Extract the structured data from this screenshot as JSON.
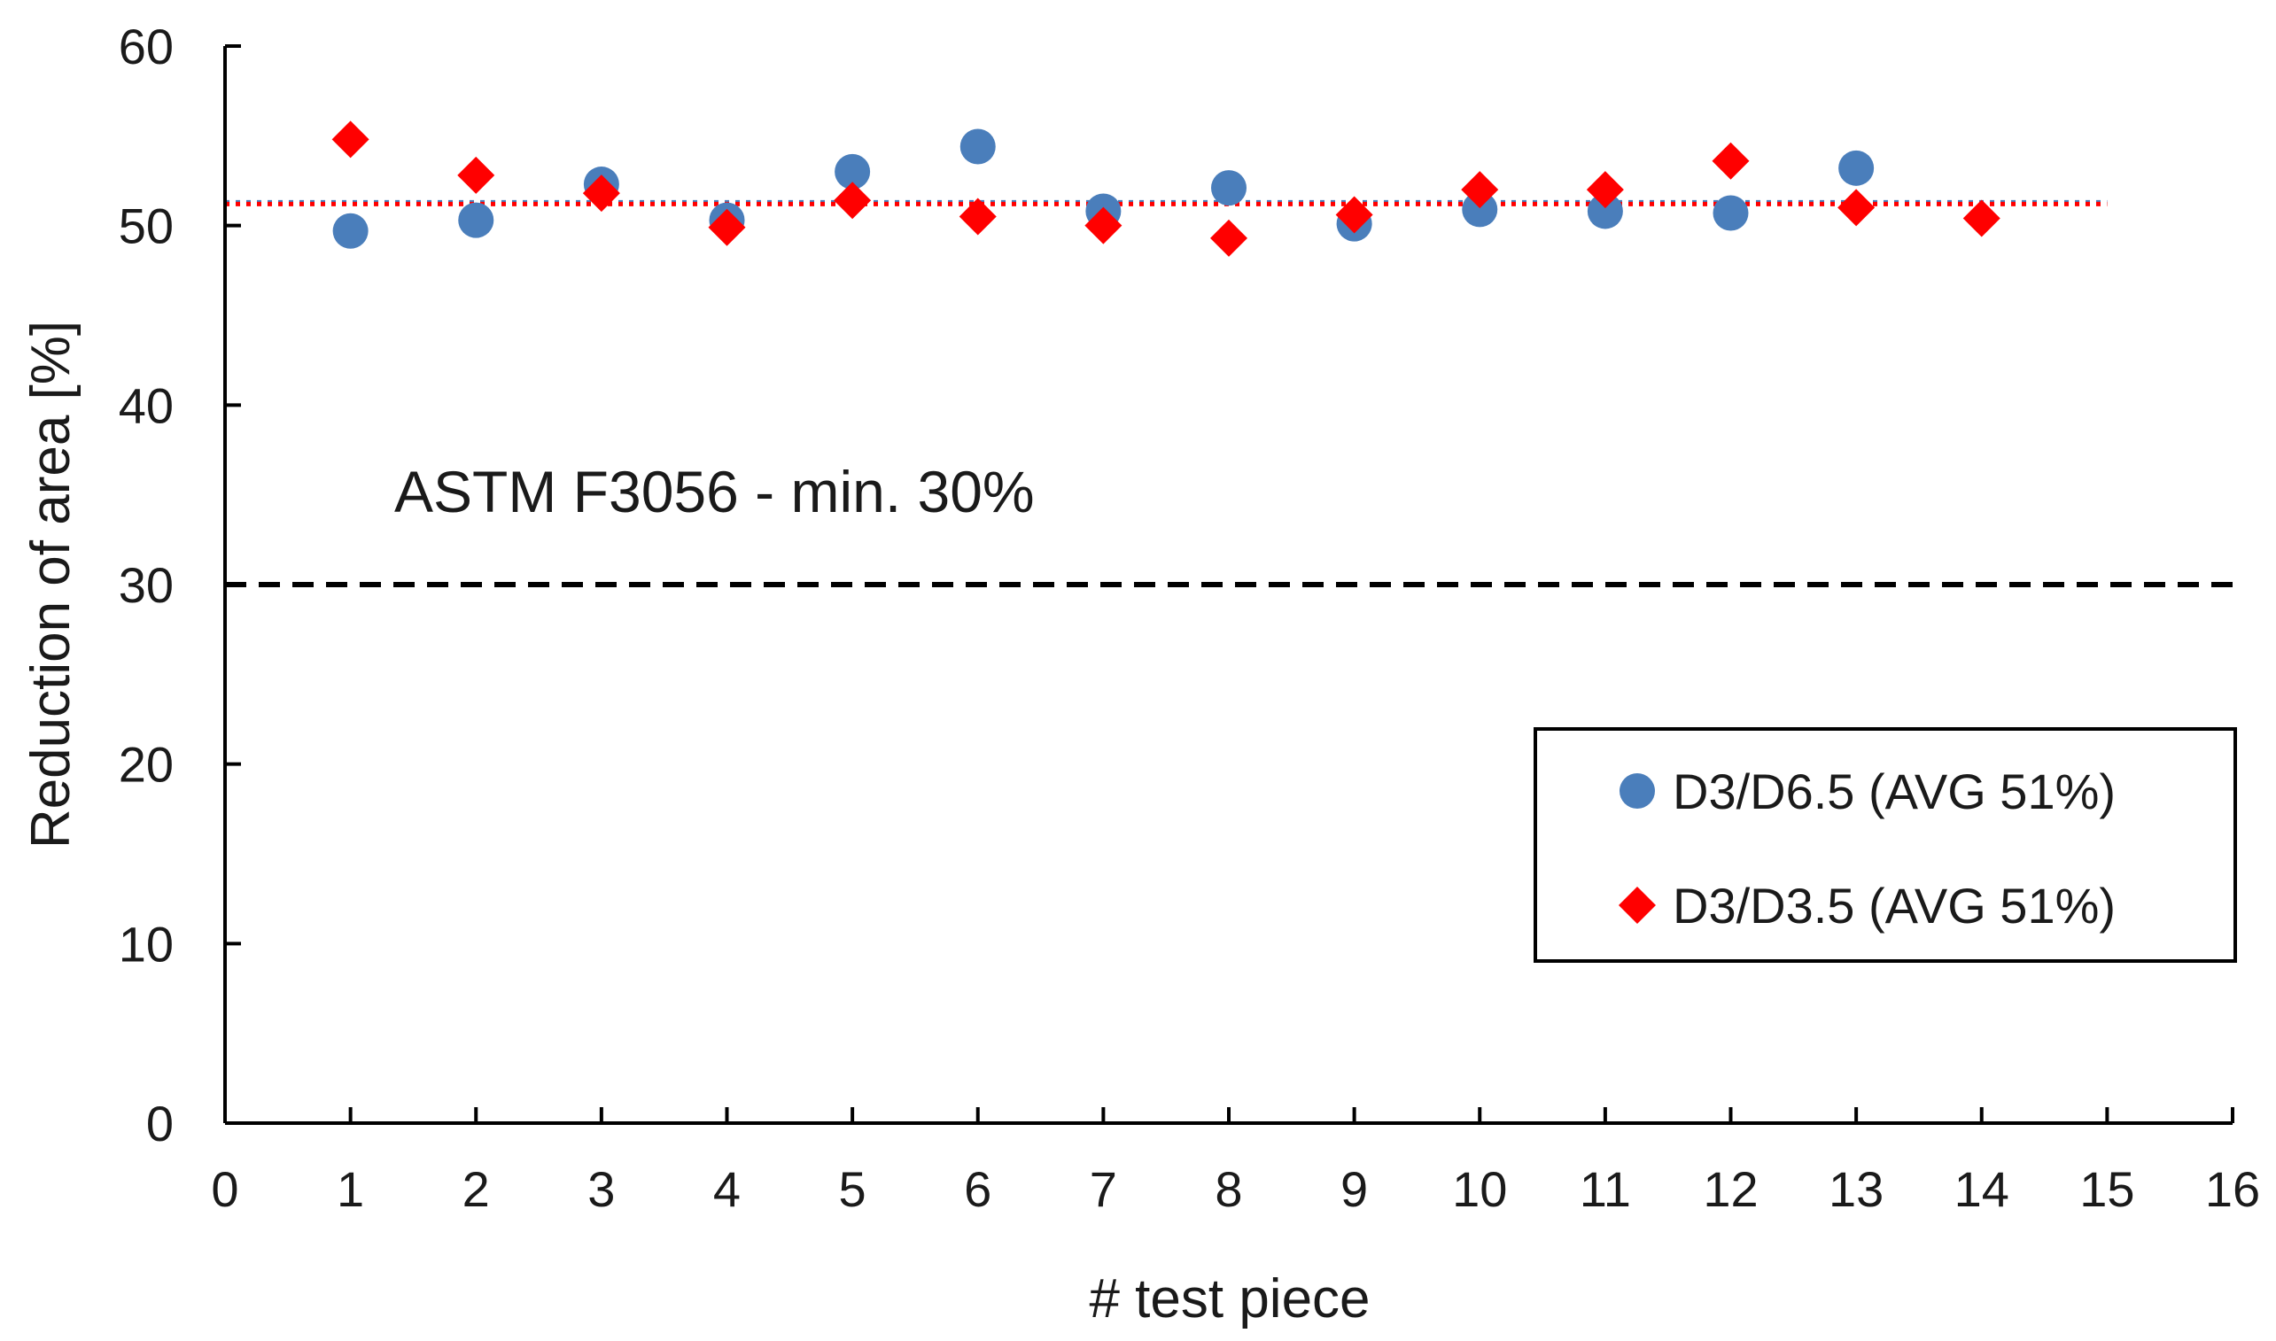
{
  "chart_data": {
    "type": "scatter",
    "title": "",
    "xlabel": "# test piece",
    "ylabel": "Reduction of area [%]",
    "xlim": [
      0,
      16
    ],
    "ylim": [
      0,
      60
    ],
    "xticks": [
      0,
      1,
      2,
      3,
      4,
      5,
      6,
      7,
      8,
      9,
      10,
      11,
      12,
      13,
      14,
      15,
      16
    ],
    "yticks": [
      0,
      10,
      20,
      30,
      40,
      50,
      60
    ],
    "grid": false,
    "legend_position": "lower-right",
    "series": [
      {
        "name": "D3/D6.5 (AVG 51%)",
        "marker": "circle",
        "color": "#4a7ebb",
        "x": [
          1,
          2,
          3,
          4,
          5,
          6,
          7,
          8,
          9,
          10,
          11,
          12,
          13
        ],
        "y": [
          49.7,
          50.3,
          52.3,
          50.3,
          53.0,
          54.4,
          50.8,
          52.1,
          50.1,
          50.9,
          50.8,
          50.7,
          53.2
        ],
        "average": 51.3
      },
      {
        "name": "D3/D3.5 (AVG 51%)",
        "marker": "diamond",
        "color": "#ff0000",
        "x": [
          1,
          2,
          3,
          4,
          5,
          6,
          7,
          8,
          9,
          10,
          11,
          12,
          13,
          14
        ],
        "y": [
          54.8,
          52.8,
          51.8,
          49.9,
          51.4,
          50.5,
          50.0,
          49.3,
          50.6,
          52.0,
          52.0,
          53.6,
          51.0,
          50.4
        ],
        "average": 51.2
      }
    ],
    "reference_line": {
      "value": 30,
      "style": "dashed",
      "color": "#000000",
      "label": "ASTM F3056 - min. 30%"
    }
  }
}
